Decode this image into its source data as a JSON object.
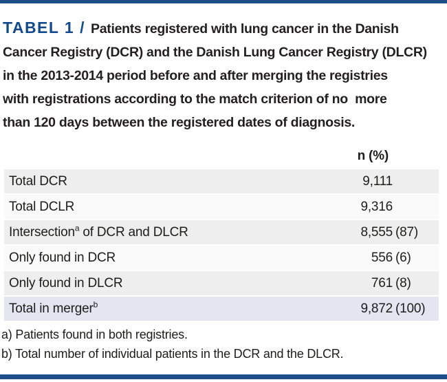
{
  "colors": {
    "rule_navy": "#1d4e87",
    "title_blue": "#134a8c",
    "row_gray": "#eeeeee",
    "row_light": "#fafafa",
    "row_total_lavender": "#e3e5f1",
    "text_dark": "#231f20"
  },
  "title": {
    "label": "TABEL 1 /",
    "lines": [
      "Patients registered with lung cancer in the Danish",
      "Cancer Registry (DCR) and the Danish Lung Cancer Registry (DLCR)",
      "in the 2013-2014 period before and after merging the registries",
      "with registrations according to the match criterion of no  more",
      "than 120 days between the registered dates of diagnosis."
    ]
  },
  "table": {
    "header": {
      "value_col": "n (%)"
    },
    "rows": [
      {
        "label": "Total DCR",
        "sup": "",
        "label_rest": "",
        "n": "9,111",
        "pct": ""
      },
      {
        "label": "Total DCLR",
        "sup": "",
        "label_rest": "",
        "n": "9,316",
        "pct": ""
      },
      {
        "label": "Intersection",
        "sup": "a",
        "label_rest": " of DCR and DLCR",
        "n": "8,555",
        "pct": "(87)"
      },
      {
        "label": "Only found in DCR",
        "sup": "",
        "label_rest": "",
        "n": "556",
        "pct": "(6)"
      },
      {
        "label": "Only found in DLCR",
        "sup": "",
        "label_rest": "",
        "n": "761",
        "pct": "(8)"
      },
      {
        "label": "Total in merger",
        "sup": "b",
        "label_rest": "",
        "n": "9,872",
        "pct": "(100)"
      }
    ]
  },
  "footnotes": [
    "a) Patients found in both registries.",
    "b) Total number of individual patients in the DCR and the DLCR."
  ],
  "chart_data": {
    "type": "table",
    "title": "TABEL 1 / Patients registered with lung cancer in the Danish Cancer Registry (DCR) and the Danish Lung Cancer Registry (DLCR) in the 2013-2014 period before and after merging the registries with registrations according to the match criterion of no more than 120 days between the registered dates of diagnosis.",
    "columns": [
      "",
      "n (%)"
    ],
    "rows": [
      [
        "Total DCR",
        "9,111"
      ],
      [
        "Total DCLR",
        "9,316"
      ],
      [
        "Intersection(a) of DCR and DLCR",
        "8,555 (87)"
      ],
      [
        "Only found in DCR",
        "556 (6)"
      ],
      [
        "Only found in DLCR",
        "761 (8)"
      ],
      [
        "Total in merger(b)",
        "9,872 (100)"
      ]
    ]
  }
}
